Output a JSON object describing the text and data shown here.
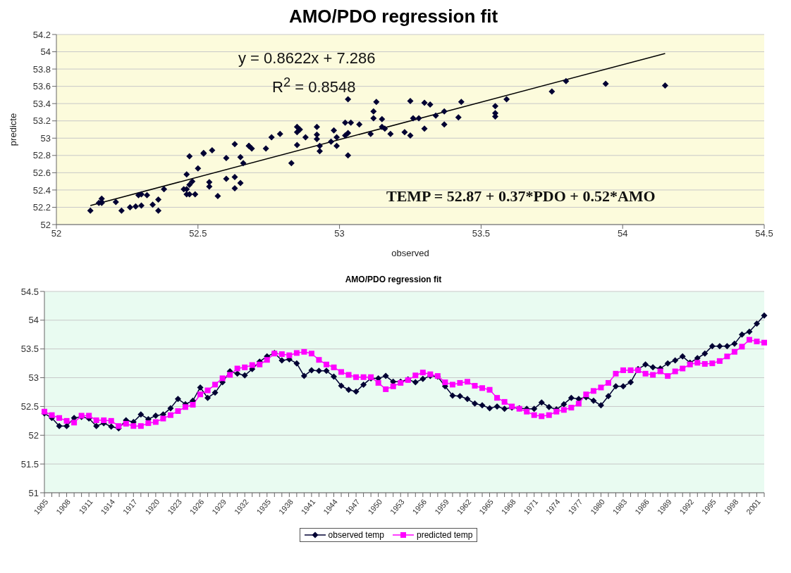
{
  "chart_data": [
    {
      "type": "scatter",
      "title": "AMO/PDO regression fit",
      "xlabel": "observed",
      "ylabel": "predicte",
      "annotations": [
        "y = 0.8622x + 7.286",
        "R$^{2}$ = 0.8548",
        "TEMP = 52.87 + 0.37*PDO + 0.52*AMO"
      ],
      "xlim": [
        52,
        54.5
      ],
      "xticks": [
        52,
        52.5,
        53,
        53.5,
        54,
        54.5
      ],
      "ylim": [
        52,
        54.2
      ],
      "yticks": [
        52,
        52.2,
        52.4,
        52.6,
        52.8,
        53,
        53.2,
        53.4,
        53.6,
        53.8,
        54,
        54.2
      ],
      "grid": "y",
      "series": [
        {
          "type": "scatter",
          "color": "#000033",
          "marker": "diamond",
          "x": [
            52.38,
            52.3,
            52.16,
            52.16,
            52.3,
            52.32,
            52.29,
            52.16,
            52.21,
            52.15,
            52.12,
            52.26,
            52.23,
            52.36,
            52.28,
            52.34,
            52.36,
            52.47,
            52.63,
            52.54,
            52.6,
            52.83,
            52.65,
            52.74,
            52.92,
            53.11,
            53.07,
            53.04,
            53.15,
            53.28,
            53.37,
            53.43,
            53.3,
            53.32,
            53.25,
            53.03,
            53.13,
            53.12,
            53.12,
            53.02,
            52.86,
            52.79,
            52.76,
            52.88,
            52.99,
            52.99,
            53.03,
            52.93,
            52.93,
            52.97,
            52.92,
            52.98,
            53.03,
            53.02,
            52.85,
            52.69,
            52.68,
            52.63,
            52.55,
            52.52,
            52.47,
            52.5,
            52.46,
            52.48,
            52.47,
            52.46,
            52.46,
            52.57,
            52.49,
            52.45,
            52.54,
            52.65,
            52.63,
            52.66,
            52.6,
            52.52,
            52.68,
            52.85,
            52.85,
            52.92,
            53.15,
            53.23,
            53.18,
            53.16,
            53.25,
            53.3,
            53.37,
            53.26,
            53.34,
            53.42,
            53.55,
            53.55,
            53.55,
            53.59,
            53.75,
            53.8,
            53.94,
            54.15
          ],
          "values": [
            52.41,
            52.35,
            52.3,
            52.25,
            52.22,
            52.34,
            52.34,
            52.26,
            52.26,
            52.25,
            52.16,
            52.2,
            52.16,
            52.16,
            52.21,
            52.23,
            52.29,
            52.35,
            52.42,
            52.49,
            52.53,
            52.71,
            52.78,
            52.88,
            52.99,
            53.05,
            53.16,
            53.18,
            53.22,
            53.23,
            53.31,
            53.42,
            53.41,
            53.39,
            53.43,
            53.45,
            53.42,
            53.31,
            53.23,
            53.18,
            53.1,
            53.05,
            53.01,
            53.01,
            53.01,
            52.91,
            52.8,
            52.85,
            52.91,
            52.96,
            53.04,
            53.09,
            53.06,
            53.03,
            52.92,
            52.88,
            52.91,
            52.93,
            52.86,
            52.82,
            52.79,
            52.65,
            52.58,
            52.5,
            52.46,
            52.41,
            52.35,
            52.33,
            52.35,
            52.41,
            52.44,
            52.48,
            52.55,
            52.71,
            52.77,
            52.83,
            52.91,
            53.07,
            53.13,
            53.13,
            53.13,
            53.07,
            53.05,
            53.11,
            53.03,
            53.11,
            53.16,
            53.23,
            53.26,
            53.24,
            53.25,
            53.29,
            53.37,
            53.45,
            53.54,
            53.66,
            53.63,
            53.61
          ]
        },
        {
          "type": "line",
          "color": "#000000",
          "marker": "none",
          "x": [
            52.12,
            54.15
          ],
          "values": [
            52.22,
            53.98
          ]
        }
      ]
    },
    {
      "type": "line",
      "title": "AMO/PDO regression fit",
      "legend": "bottom",
      "grid": "y",
      "categories": [
        "1905",
        null,
        null,
        "1908",
        null,
        null,
        "1911",
        null,
        null,
        "1914",
        null,
        null,
        "1917",
        null,
        null,
        "1920",
        null,
        null,
        "1923",
        null,
        null,
        "1926",
        null,
        null,
        "1929",
        null,
        null,
        "1932",
        null,
        null,
        "1935",
        null,
        null,
        "1938",
        null,
        null,
        "1941",
        null,
        null,
        "1944",
        null,
        null,
        "1947",
        null,
        null,
        "1950",
        null,
        null,
        "1953",
        null,
        null,
        "1956",
        null,
        null,
        "1959",
        null,
        null,
        "1962",
        null,
        null,
        "1965",
        null,
        null,
        "1968",
        null,
        null,
        "1971",
        null,
        null,
        "1974",
        null,
        null,
        "1977",
        null,
        null,
        "1980",
        null,
        null,
        "1983",
        null,
        null,
        "1986",
        null,
        null,
        "1989",
        null,
        null,
        "1992",
        null,
        null,
        "1995",
        null,
        null,
        "1998",
        null,
        null,
        "2001",
        null
      ],
      "ylim": [
        51,
        54.5
      ],
      "yticks": [
        51,
        51.5,
        52,
        52.5,
        53,
        53.5,
        54,
        54.5
      ],
      "series": [
        {
          "name": "observed temp",
          "color": "#000033",
          "marker": "diamond",
          "values": [
            52.38,
            52.3,
            52.16,
            52.16,
            52.3,
            52.32,
            52.29,
            52.16,
            52.21,
            52.15,
            52.12,
            52.26,
            52.23,
            52.36,
            52.28,
            52.34,
            52.36,
            52.47,
            52.63,
            52.54,
            52.6,
            52.83,
            52.65,
            52.74,
            52.92,
            53.11,
            53.07,
            53.04,
            53.15,
            53.28,
            53.37,
            53.43,
            53.3,
            53.32,
            53.25,
            53.03,
            53.13,
            53.12,
            53.12,
            53.02,
            52.86,
            52.79,
            52.76,
            52.88,
            52.99,
            52.99,
            53.03,
            52.93,
            52.93,
            52.97,
            52.92,
            52.98,
            53.03,
            53.02,
            52.85,
            52.69,
            52.68,
            52.63,
            52.55,
            52.52,
            52.47,
            52.5,
            52.46,
            52.48,
            52.47,
            52.46,
            52.46,
            52.57,
            52.49,
            52.45,
            52.54,
            52.65,
            52.63,
            52.66,
            52.6,
            52.52,
            52.68,
            52.85,
            52.85,
            52.92,
            53.15,
            53.23,
            53.18,
            53.16,
            53.25,
            53.3,
            53.37,
            53.26,
            53.34,
            53.42,
            53.55,
            53.55,
            53.55,
            53.59,
            53.75,
            53.8,
            53.94,
            54.08
          ]
        },
        {
          "name": "predicted temp",
          "color": "#ff00ff",
          "marker": "square",
          "values": [
            52.41,
            52.35,
            52.3,
            52.25,
            52.22,
            52.34,
            52.34,
            52.26,
            52.26,
            52.25,
            52.16,
            52.2,
            52.16,
            52.16,
            52.21,
            52.23,
            52.29,
            52.35,
            52.42,
            52.49,
            52.53,
            52.71,
            52.78,
            52.88,
            52.99,
            53.05,
            53.16,
            53.18,
            53.22,
            53.23,
            53.31,
            53.42,
            53.41,
            53.39,
            53.43,
            53.45,
            53.42,
            53.31,
            53.23,
            53.18,
            53.1,
            53.05,
            53.01,
            53.01,
            53.01,
            52.91,
            52.8,
            52.85,
            52.91,
            52.96,
            53.04,
            53.09,
            53.06,
            53.03,
            52.92,
            52.88,
            52.91,
            52.93,
            52.86,
            52.82,
            52.79,
            52.65,
            52.58,
            52.5,
            52.46,
            52.41,
            52.35,
            52.33,
            52.35,
            52.41,
            52.44,
            52.48,
            52.55,
            52.71,
            52.77,
            52.83,
            52.91,
            53.07,
            53.13,
            53.13,
            53.13,
            53.07,
            53.05,
            53.11,
            53.03,
            53.11,
            53.16,
            53.23,
            53.26,
            53.24,
            53.25,
            53.29,
            53.37,
            53.45,
            53.54,
            53.66,
            53.63,
            53.61
          ]
        }
      ]
    }
  ]
}
